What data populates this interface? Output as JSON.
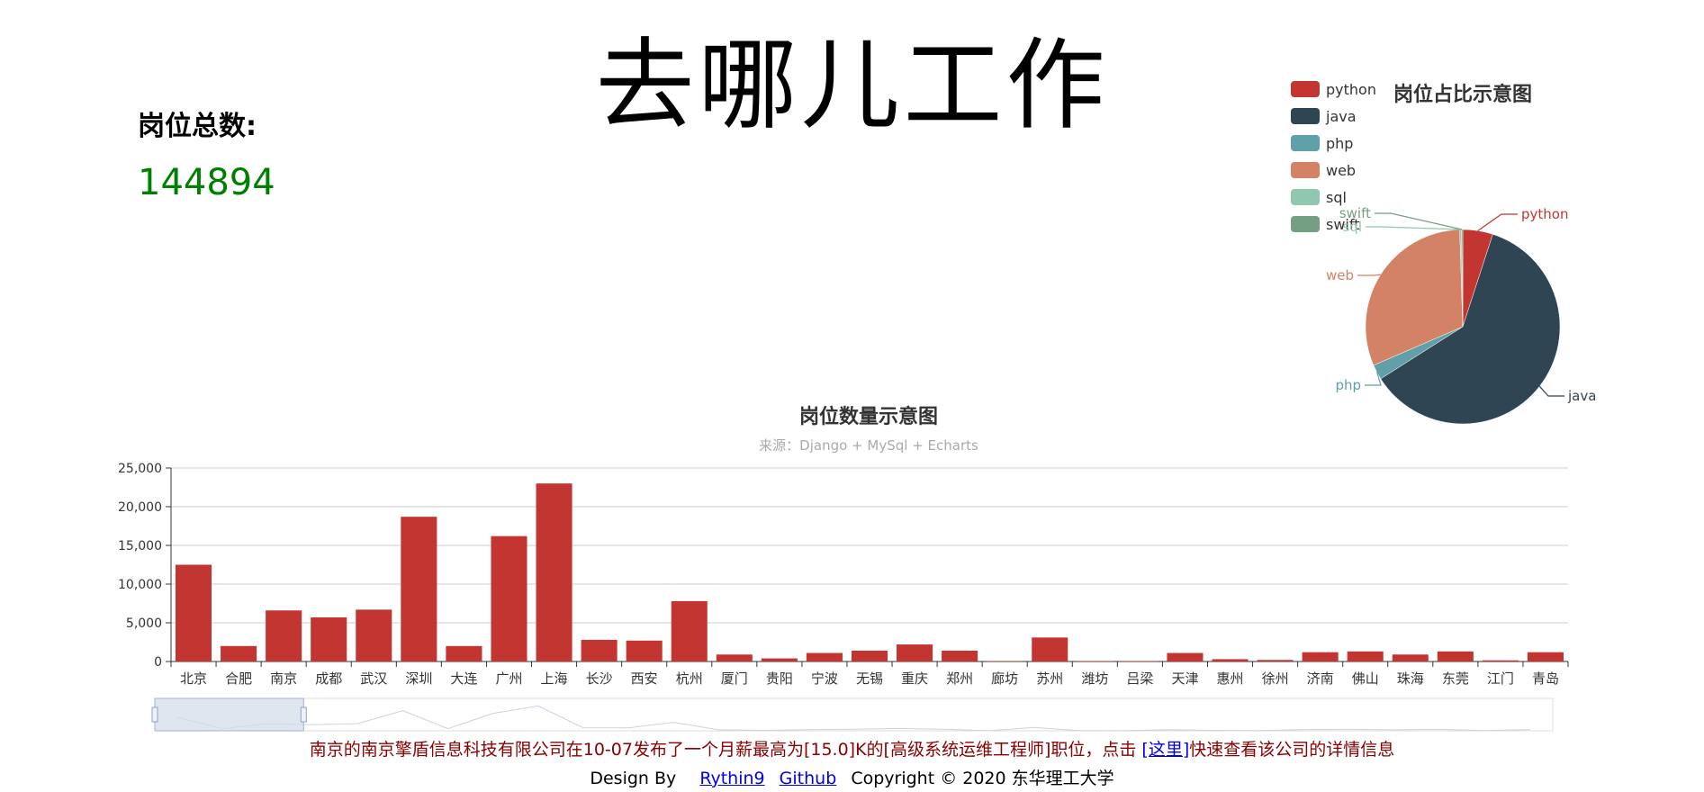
{
  "page": {
    "title": "去哪儿工作",
    "total_label": "岗位总数:",
    "total_value": "144894"
  },
  "info": {
    "prefix": "南京的南京擎盾信息科技有限公司在10-07发布了一个月薪最高为[15.0]K的[高级系统运维工程师]职位，点击 ",
    "link_text": "[这里]",
    "suffix": "快速查看该公司的详情信息"
  },
  "footer": {
    "design_by": "Design By",
    "author_link": "Rythin9",
    "github_link": "Github",
    "copyright": "Copyright © 2020 东华理工大学"
  },
  "colors": {
    "bar": "#c23531",
    "axis": "#333333",
    "grid": "#cccccc",
    "datazoom_fill": "#d3dce8",
    "datazoom_border": "#9fb3d0"
  },
  "chart_data": [
    {
      "type": "bar",
      "title": "岗位数量示意图",
      "subtitle": "来源：Django + MySql + Echarts",
      "categories": [
        "北京",
        "合肥",
        "南京",
        "成都",
        "武汉",
        "深圳",
        "大连",
        "广州",
        "上海",
        "长沙",
        "西安",
        "杭州",
        "厦门",
        "贵阳",
        "宁波",
        "无锡",
        "重庆",
        "郑州",
        "廊坊",
        "苏州",
        "潍坊",
        "吕梁",
        "天津",
        "惠州",
        "徐州",
        "济南",
        "佛山",
        "珠海",
        "东莞",
        "江门",
        "青岛"
      ],
      "values": [
        12500,
        2000,
        6600,
        5700,
        6700,
        18700,
        2000,
        16200,
        23000,
        2800,
        2700,
        7800,
        900,
        400,
        1100,
        1400,
        2200,
        1400,
        50,
        3100,
        60,
        60,
        1100,
        300,
        200,
        1200,
        1300,
        900,
        1300,
        150,
        1200
      ],
      "ylim": [
        0,
        25000
      ],
      "yticks": [
        "0",
        "5,000",
        "10,000",
        "15,000",
        "20,000",
        "25,000"
      ],
      "grid": true,
      "datazoom": {
        "start_fraction": 0,
        "end_fraction": 0.1
      }
    },
    {
      "type": "pie",
      "title": "岗位占比示意图",
      "legend_position": "top-left",
      "slices": [
        {
          "name": "python",
          "value": 5,
          "color": "#c23531"
        },
        {
          "name": "java",
          "value": 61,
          "color": "#2f4554"
        },
        {
          "name": "php",
          "value": 2.5,
          "color": "#61a0a8"
        },
        {
          "name": "web",
          "value": 31,
          "color": "#d48265"
        },
        {
          "name": "sql",
          "value": 0.3,
          "color": "#91c7ae"
        },
        {
          "name": "swift",
          "value": 0.2,
          "color": "#749f83"
        }
      ]
    }
  ]
}
